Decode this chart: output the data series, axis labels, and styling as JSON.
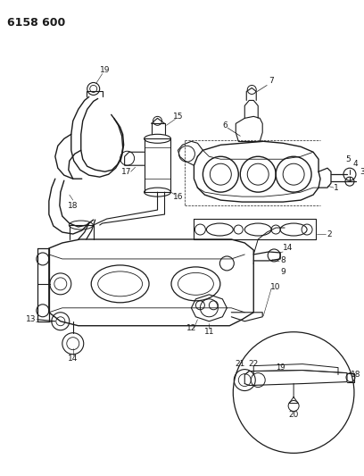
{
  "title": "6158 600",
  "bg_color": "#ffffff",
  "line_color": "#1a1a1a",
  "title_fontsize": 9,
  "label_fontsize": 6.5,
  "fig_width": 4.08,
  "fig_height": 5.33,
  "dpi": 100
}
